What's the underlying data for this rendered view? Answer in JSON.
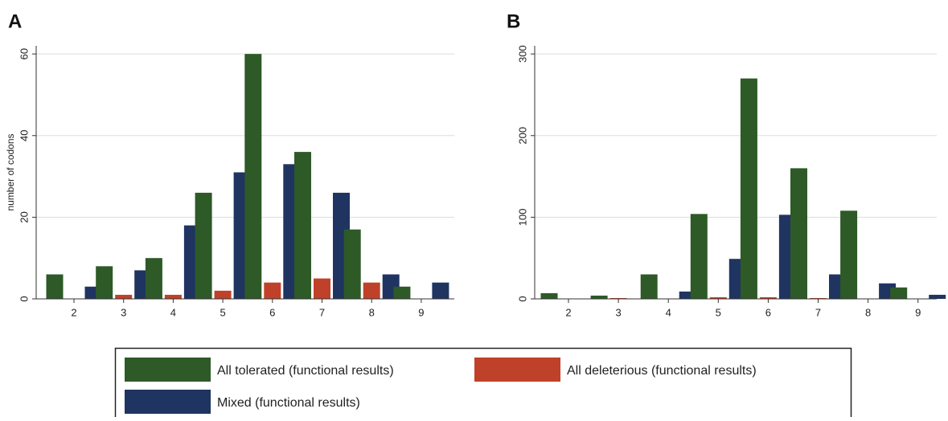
{
  "chart_data": [
    {
      "type": "bar",
      "title": "A",
      "ylabel": "number of codons",
      "categories": [
        2,
        3,
        4,
        5,
        6,
        7,
        8,
        9
      ],
      "series": [
        {
          "name": "All tolerated (functional results)",
          "color": "#2d5a27",
          "values": [
            6,
            8,
            10,
            26,
            60,
            36,
            17,
            3
          ]
        },
        {
          "name": "All deleterious (functional results)",
          "color": "#c0412a",
          "values": [
            0,
            1,
            1,
            2,
            4,
            5,
            4,
            0
          ]
        },
        {
          "name": "Mixed (functional results)",
          "color": "#1f3461",
          "values": [
            3,
            7,
            18,
            31,
            33,
            26,
            6,
            4
          ]
        }
      ],
      "ylim": [
        0,
        62
      ],
      "yticks": [
        0,
        20,
        40,
        60
      ],
      "grid": true
    },
    {
      "type": "bar",
      "title": "B",
      "categories": [
        2,
        3,
        4,
        5,
        6,
        7,
        8,
        9
      ],
      "series": [
        {
          "color": "#2d5a27",
          "values": [
            7,
            4,
            30,
            104,
            270,
            160,
            108,
            14
          ]
        },
        {
          "color": "#c0412a",
          "values": [
            0,
            1,
            0,
            2,
            2,
            1,
            0,
            0
          ]
        },
        {
          "color": "#1f3461",
          "values": [
            0,
            0,
            9,
            49,
            103,
            30,
            19,
            5
          ]
        }
      ],
      "ylim": [
        0,
        310
      ],
      "yticks": [
        0,
        100,
        200,
        300
      ],
      "grid": true
    }
  ]
}
